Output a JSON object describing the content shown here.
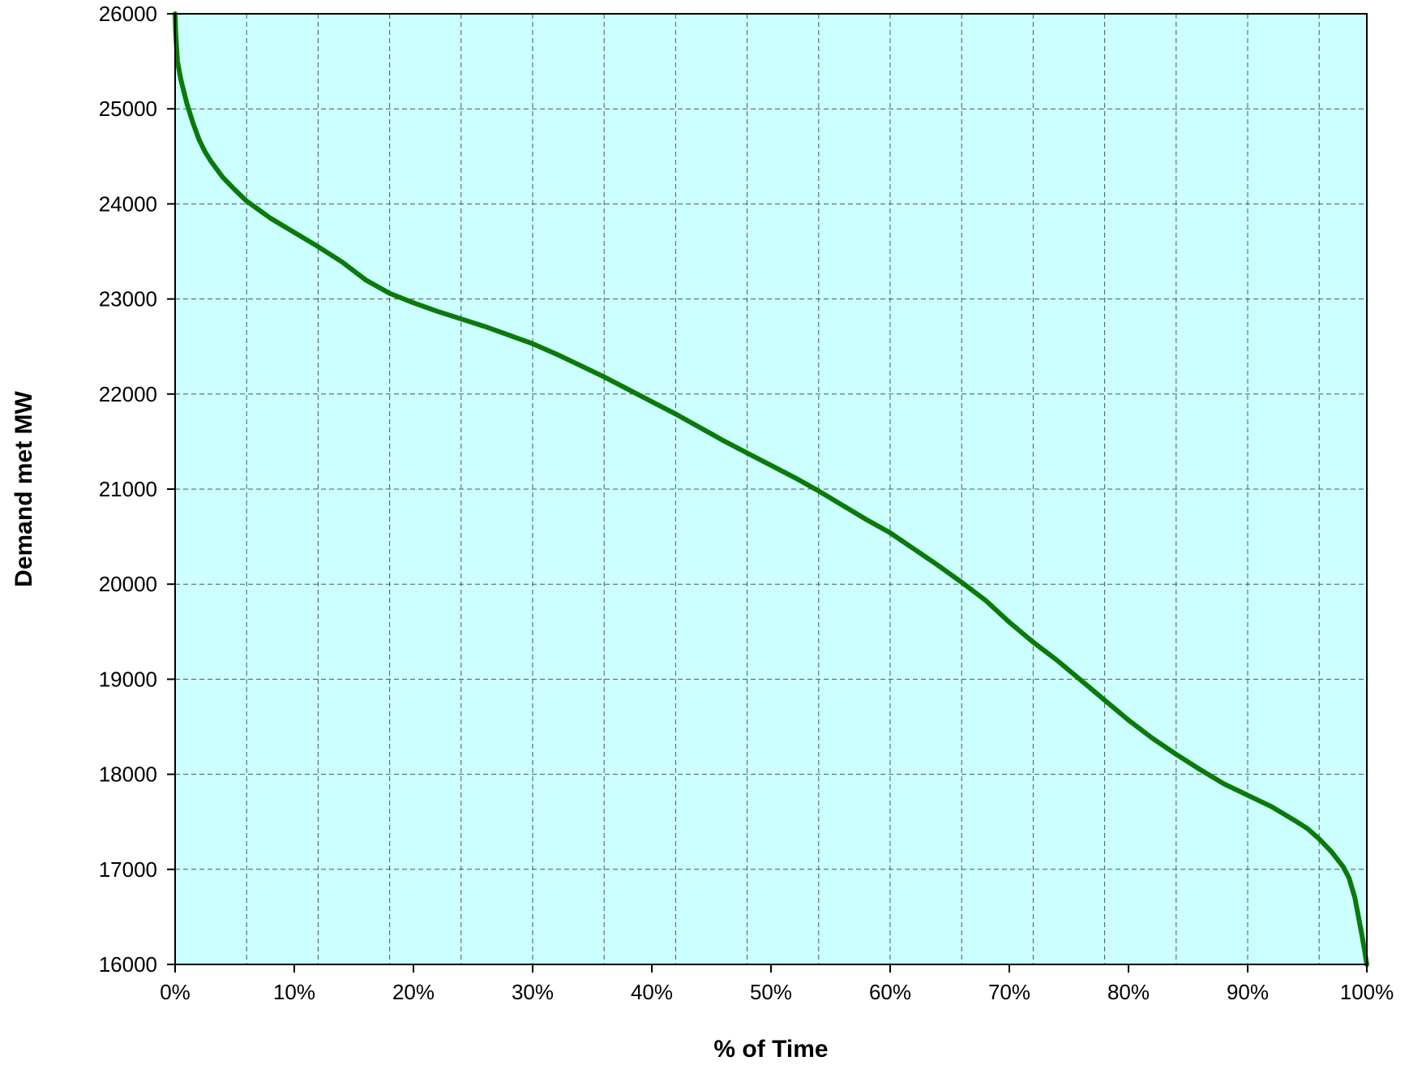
{
  "chart_data": {
    "type": "line",
    "title": "",
    "xlabel": "% of Time",
    "ylabel": "Demand met MW",
    "xlim": [
      0,
      100
    ],
    "ylim": [
      16000,
      26000
    ],
    "x_ticks": [
      0,
      10,
      20,
      30,
      40,
      50,
      60,
      70,
      80,
      90,
      100
    ],
    "x_tick_labels": [
      "0%",
      "10%",
      "20%",
      "30%",
      "40%",
      "50%",
      "60%",
      "70%",
      "80%",
      "90%",
      "100%"
    ],
    "y_ticks": [
      16000,
      17000,
      18000,
      19000,
      20000,
      21000,
      22000,
      23000,
      24000,
      25000,
      26000
    ],
    "y_tick_labels": [
      "16000",
      "17000",
      "18000",
      "19000",
      "20000",
      "21000",
      "22000",
      "23000",
      "24000",
      "25000",
      "26000"
    ],
    "grid": true,
    "grid_x_lines": [
      6,
      12,
      18,
      24,
      30,
      36,
      42,
      48,
      54,
      60,
      66,
      72,
      78,
      84,
      90,
      96
    ],
    "legend": "none",
    "colors": {
      "plot_background": "#ccffff",
      "line": "#0a7a0a",
      "grid": "#555555",
      "frame": "#000000"
    },
    "series": [
      {
        "x": [
          0,
          0.05,
          0.2,
          0.5,
          1,
          1.5,
          2,
          2.5,
          3,
          4,
          5,
          6,
          8,
          10,
          12,
          14,
          16,
          18,
          20,
          22,
          24,
          26,
          28,
          30,
          32,
          34,
          36,
          38,
          40,
          42,
          44,
          46,
          48,
          50,
          52,
          54,
          56,
          58,
          60,
          62,
          64,
          66,
          68,
          70,
          72,
          74,
          76,
          78,
          80,
          82,
          84,
          86,
          88,
          90,
          92,
          94,
          95,
          96,
          97,
          98,
          98.5,
          99,
          99.3,
          99.6,
          99.8,
          100
        ],
        "y": [
          26000,
          25800,
          25500,
          25300,
          25050,
          24850,
          24680,
          24550,
          24450,
          24280,
          24150,
          24030,
          23850,
          23700,
          23550,
          23390,
          23200,
          23060,
          22960,
          22870,
          22790,
          22710,
          22620,
          22530,
          22420,
          22300,
          22180,
          22050,
          21920,
          21790,
          21650,
          21510,
          21380,
          21250,
          21120,
          20980,
          20830,
          20680,
          20540,
          20370,
          20200,
          20020,
          19830,
          19600,
          19390,
          19200,
          18990,
          18780,
          18570,
          18380,
          18210,
          18050,
          17900,
          17780,
          17660,
          17510,
          17430,
          17320,
          17190,
          17030,
          16910,
          16700,
          16500,
          16300,
          16150,
          16000
        ]
      }
    ]
  }
}
